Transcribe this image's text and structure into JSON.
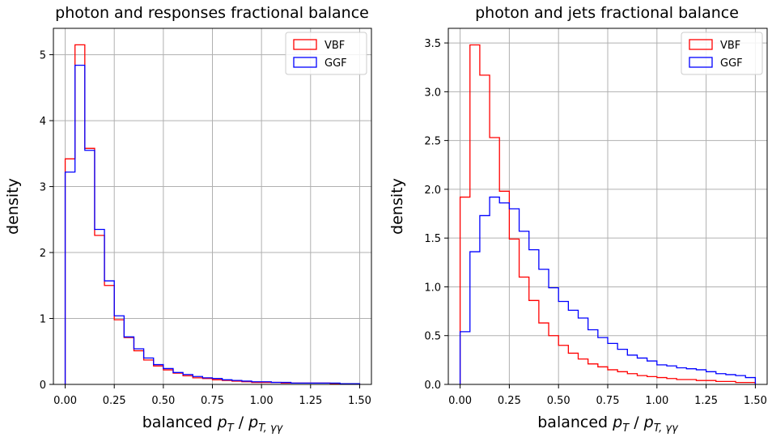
{
  "chart_data": [
    {
      "type": "histogram",
      "title": "photon and responses fractional balance",
      "xlabel_main": "balanced ",
      "xlabel_num": "p",
      "xlabel_num_sub": "T",
      "xlabel_sep": " / ",
      "xlabel_den": "p",
      "xlabel_den_sub": "T, γγ",
      "ylabel": "density",
      "xlim": [
        -0.06,
        1.56
      ],
      "ylim": [
        0,
        5.4
      ],
      "xticks": [
        0,
        0.25,
        0.5,
        0.75,
        1.0,
        1.25,
        1.5
      ],
      "xtick_labels": [
        "0.00",
        "0.25",
        "0.50",
        "0.75",
        "1.00",
        "1.25",
        "1.50"
      ],
      "yticks": [
        0,
        1,
        2,
        3,
        4,
        5
      ],
      "ytick_labels": [
        "0",
        "1",
        "2",
        "3",
        "4",
        "5"
      ],
      "grid": true,
      "legend_position": "top-right",
      "bin_edges": [
        0,
        0.05,
        0.1,
        0.15,
        0.2,
        0.25,
        0.3,
        0.35,
        0.4,
        0.45,
        0.5,
        0.55,
        0.6,
        0.65,
        0.7,
        0.75,
        0.8,
        0.85,
        0.9,
        0.95,
        1.0,
        1.05,
        1.1,
        1.15,
        1.2,
        1.25,
        1.3,
        1.35,
        1.4,
        1.45,
        1.5
      ],
      "series": [
        {
          "name": "VBF",
          "color": "#ff0000",
          "values": [
            3.42,
            5.15,
            3.58,
            2.26,
            1.5,
            0.98,
            0.71,
            0.51,
            0.37,
            0.28,
            0.22,
            0.17,
            0.13,
            0.1,
            0.09,
            0.07,
            0.06,
            0.05,
            0.04,
            0.03,
            0.03,
            0.03,
            0.02,
            0.02,
            0.02,
            0.02,
            0.02,
            0.01,
            0.01,
            0.01
          ]
        },
        {
          "name": "GGF",
          "color": "#0000ff",
          "values": [
            3.22,
            4.84,
            3.55,
            2.35,
            1.57,
            1.04,
            0.72,
            0.54,
            0.4,
            0.3,
            0.24,
            0.18,
            0.15,
            0.12,
            0.1,
            0.09,
            0.07,
            0.06,
            0.05,
            0.04,
            0.04,
            0.03,
            0.03,
            0.02,
            0.02,
            0.02,
            0.02,
            0.02,
            0.01,
            0.01
          ]
        }
      ]
    },
    {
      "type": "histogram",
      "title": "photon and jets fractional balance",
      "xlabel_main": "balanced ",
      "xlabel_num": "p",
      "xlabel_num_sub": "T",
      "xlabel_sep": " / ",
      "xlabel_den": "p",
      "xlabel_den_sub": "T, γγ",
      "ylabel": "density",
      "xlim": [
        -0.06,
        1.56
      ],
      "ylim": [
        0,
        3.65
      ],
      "xticks": [
        0,
        0.25,
        0.5,
        0.75,
        1.0,
        1.25,
        1.5
      ],
      "xtick_labels": [
        "0.00",
        "0.25",
        "0.50",
        "0.75",
        "1.00",
        "1.25",
        "1.50"
      ],
      "yticks": [
        0,
        0.5,
        1.0,
        1.5,
        2.0,
        2.5,
        3.0,
        3.5
      ],
      "ytick_labels": [
        "0.0",
        "0.5",
        "1.0",
        "1.5",
        "2.0",
        "2.5",
        "3.0",
        "3.5"
      ],
      "grid": true,
      "legend_position": "top-right",
      "bin_edges": [
        0,
        0.05,
        0.1,
        0.15,
        0.2,
        0.25,
        0.3,
        0.35,
        0.4,
        0.45,
        0.5,
        0.55,
        0.6,
        0.65,
        0.7,
        0.75,
        0.8,
        0.85,
        0.9,
        0.95,
        1.0,
        1.05,
        1.1,
        1.15,
        1.2,
        1.25,
        1.3,
        1.35,
        1.4,
        1.45,
        1.5
      ],
      "series": [
        {
          "name": "VBF",
          "color": "#ff0000",
          "values": [
            1.92,
            3.48,
            3.17,
            2.53,
            1.98,
            1.49,
            1.1,
            0.86,
            0.63,
            0.5,
            0.4,
            0.32,
            0.26,
            0.21,
            0.18,
            0.15,
            0.13,
            0.11,
            0.09,
            0.08,
            0.07,
            0.06,
            0.05,
            0.05,
            0.04,
            0.04,
            0.03,
            0.03,
            0.02,
            0.02
          ]
        },
        {
          "name": "GGF",
          "color": "#0000ff",
          "values": [
            0.54,
            1.36,
            1.73,
            1.92,
            1.86,
            1.8,
            1.57,
            1.38,
            1.18,
            0.99,
            0.85,
            0.76,
            0.68,
            0.56,
            0.48,
            0.42,
            0.36,
            0.3,
            0.27,
            0.24,
            0.2,
            0.19,
            0.17,
            0.16,
            0.15,
            0.13,
            0.11,
            0.1,
            0.09,
            0.07
          ]
        }
      ]
    }
  ]
}
